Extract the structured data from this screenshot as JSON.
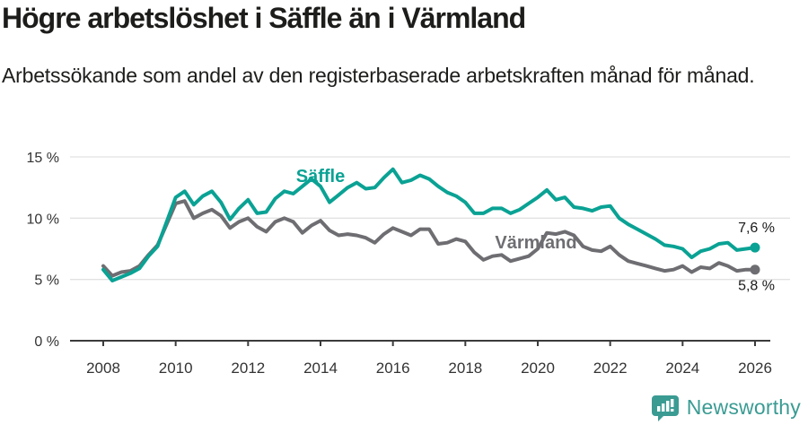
{
  "header": {
    "title": "Högre arbetslöshet i Säffle än i Värmland",
    "subtitle": "Arbetssökande som andel av den registerbaserade arbetskraften månad för månad."
  },
  "footer": {
    "brand": "Newsworthy",
    "logo_icon": "bar-chart-speech-bubble-icon"
  },
  "colors": {
    "saffle": "#0aa294",
    "varmland": "#6e6e72",
    "grid": "#e2e2e2",
    "axis": "#3b3b3b",
    "tick_label": "#333333",
    "end_label": "#1a1a1a",
    "brand": "#3a9b93"
  },
  "chart_data": {
    "type": "line",
    "title": "Högre arbetslöshet i Säffle än i Värmland",
    "subtitle": "Arbetssökande som andel av den registerbaserade arbetskraften månad för månad.",
    "unit": "%",
    "x_start": 2008.0,
    "x_step": 0.25,
    "x_end": 2026.0,
    "xlim": [
      2007.1,
      2027.0
    ],
    "ylim": [
      0,
      15
    ],
    "y_ticks": [
      {
        "value": 0,
        "label": "0 %"
      },
      {
        "value": 5,
        "label": "5 %"
      },
      {
        "value": 10,
        "label": "10 %"
      },
      {
        "value": 15,
        "label": "15 %"
      }
    ],
    "x_ticks": [
      {
        "value": 2008,
        "label": "2008"
      },
      {
        "value": 2010,
        "label": "2010"
      },
      {
        "value": 2012,
        "label": "2012"
      },
      {
        "value": 2014,
        "label": "2014"
      },
      {
        "value": 2016,
        "label": "2016"
      },
      {
        "value": 2018,
        "label": "2018"
      },
      {
        "value": 2020,
        "label": "2020"
      },
      {
        "value": 2022,
        "label": "2022"
      },
      {
        "value": 2024,
        "label": "2024"
      },
      {
        "value": 2026,
        "label": "2026"
      }
    ],
    "grid": "horizontal-only",
    "legend_position": "inline-labels",
    "series": [
      {
        "name": "Värmland",
        "color": "#6e6e72",
        "end_label": "5,8 %",
        "end_value": 5.8,
        "label_anchor": {
          "x": 2019.95,
          "y": 7.55
        },
        "values": [
          6.1,
          5.3,
          5.6,
          5.7,
          6.1,
          7.0,
          7.8,
          9.5,
          11.2,
          11.4,
          10.0,
          10.4,
          10.7,
          10.2,
          9.2,
          9.7,
          10.0,
          9.3,
          8.9,
          9.7,
          10.0,
          9.7,
          8.8,
          9.4,
          9.8,
          9.0,
          8.6,
          8.7,
          8.6,
          8.4,
          8.0,
          8.7,
          9.2,
          8.9,
          8.6,
          9.1,
          9.1,
          7.9,
          8.0,
          8.3,
          8.1,
          7.2,
          6.6,
          6.9,
          7.0,
          6.5,
          6.7,
          6.9,
          7.5,
          8.8,
          8.7,
          8.9,
          8.6,
          7.7,
          7.4,
          7.3,
          7.7,
          7.0,
          6.5,
          6.3,
          6.1,
          5.9,
          5.7,
          5.8,
          6.1,
          5.6,
          6.0,
          5.9,
          6.35,
          6.1,
          5.7,
          5.8,
          5.8
        ]
      },
      {
        "name": "Säffle",
        "color": "#0aa294",
        "end_label": "7,6 %",
        "end_value": 7.6,
        "label_anchor": {
          "x": 2014.0,
          "y": 12.95
        },
        "values": [
          5.8,
          4.9,
          5.2,
          5.5,
          5.9,
          6.9,
          7.7,
          9.7,
          11.7,
          12.2,
          11.1,
          11.8,
          12.2,
          11.3,
          9.9,
          10.8,
          11.5,
          10.4,
          10.5,
          11.6,
          12.2,
          12.0,
          12.6,
          13.2,
          12.6,
          11.3,
          11.9,
          12.5,
          12.9,
          12.4,
          12.5,
          13.3,
          14.0,
          12.9,
          13.1,
          13.5,
          13.2,
          12.6,
          12.1,
          11.8,
          11.3,
          10.4,
          10.4,
          10.8,
          10.8,
          10.4,
          10.7,
          11.2,
          11.7,
          12.3,
          11.5,
          11.7,
          10.9,
          10.8,
          10.6,
          10.9,
          11.0,
          10.0,
          9.5,
          9.1,
          8.7,
          8.3,
          7.8,
          7.7,
          7.5,
          6.8,
          7.3,
          7.5,
          7.9,
          8.0,
          7.4,
          7.5,
          7.6
        ]
      }
    ]
  }
}
